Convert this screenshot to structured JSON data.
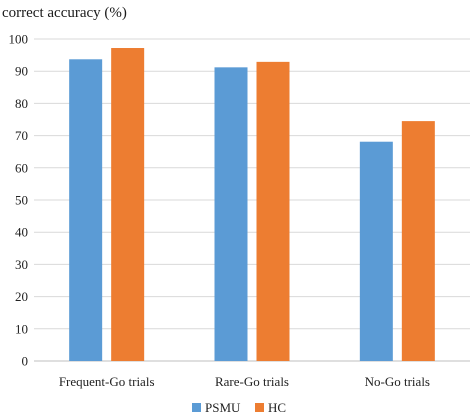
{
  "chart_data": {
    "type": "bar",
    "title": "",
    "ylabel": "correct accuracy (%)",
    "xlabel": "",
    "ylim": [
      0,
      100
    ],
    "yticks": [
      0,
      10,
      20,
      30,
      40,
      50,
      60,
      70,
      80,
      90,
      100
    ],
    "grid": true,
    "legend_position": "bottom",
    "categories": [
      "Frequent-Go trials",
      "Rare-Go trials",
      "No-Go trials"
    ],
    "series": [
      {
        "name": "PSMU",
        "color": "#5b9bd5",
        "values": [
          93.7,
          91.2,
          68.1
        ]
      },
      {
        "name": "HC",
        "color": "#ed7d31",
        "values": [
          97.2,
          92.9,
          74.5
        ]
      }
    ]
  }
}
